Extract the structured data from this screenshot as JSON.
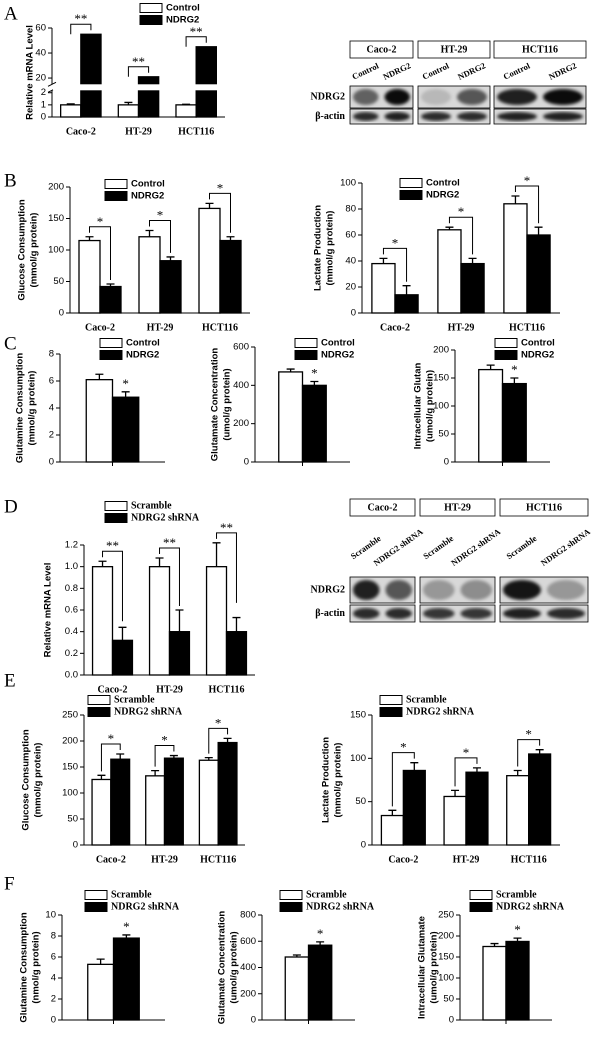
{
  "panel_letters": [
    "A",
    "B",
    "C",
    "D",
    "E",
    "F"
  ],
  "chart_data": [
    {
      "type": "bar",
      "ylabel": [
        "Relative mRNA Level"
      ],
      "categories": [
        "Caco-2",
        "HT-29",
        "HCT116"
      ],
      "series": [
        {
          "name": "Control",
          "color": "#ffffff",
          "values": [
            1,
            1,
            1
          ],
          "errors": [
            0.08,
            0.2,
            0.05
          ]
        },
        {
          "name": "NDRG2",
          "color": "#000000",
          "values": [
            55,
            21,
            45
          ]
        }
      ],
      "ylim": [
        0,
        60
      ],
      "yticks": [
        0,
        1,
        2,
        20,
        40,
        60
      ],
      "ybreak": [
        2.2,
        15
      ],
      "significance": [
        "**",
        "**",
        "**"
      ]
    },
    {
      "type": "bar",
      "ylabel": [
        "Glucose Consumption",
        "(mmol/g protein)"
      ],
      "categories": [
        "Caco-2",
        "HT-29",
        "HCT116"
      ],
      "series": [
        {
          "name": "Control",
          "color": "#ffffff",
          "values": [
            115,
            121,
            166
          ],
          "errors": [
            6,
            10,
            8
          ]
        },
        {
          "name": "NDRG2",
          "color": "#000000",
          "values": [
            42,
            83,
            115
          ],
          "errors": [
            4,
            6,
            6
          ]
        }
      ],
      "ylim": [
        0,
        200
      ],
      "yticks": [
        0,
        50,
        100,
        150,
        200
      ],
      "significance": [
        "*",
        "*",
        "*"
      ]
    },
    {
      "type": "bar",
      "ylabel": [
        "Lactate Production",
        "(mmol/g protein)"
      ],
      "categories": [
        "Caco-2",
        "HT-29",
        "HCT116"
      ],
      "series": [
        {
          "name": "Control",
          "color": "#ffffff",
          "values": [
            38,
            64,
            84
          ],
          "errors": [
            4,
            2,
            6
          ]
        },
        {
          "name": "NDRG2",
          "color": "#000000",
          "values": [
            14,
            38,
            60
          ],
          "errors": [
            7,
            4,
            6
          ]
        }
      ],
      "ylim": [
        0,
        100
      ],
      "yticks": [
        0,
        20,
        40,
        60,
        80,
        100
      ],
      "significance": [
        "*",
        "*",
        "*"
      ]
    },
    {
      "type": "bar",
      "ylabel": [
        "Glutamine Consumption",
        "(mmol/g protein)"
      ],
      "series": [
        {
          "name": "Control",
          "color": "#ffffff",
          "values": [
            6.1
          ],
          "errors": [
            0.4
          ]
        },
        {
          "name": "NDRG2",
          "color": "#000000",
          "values": [
            4.8
          ],
          "errors": [
            0.4
          ]
        }
      ],
      "ylim": [
        0,
        8
      ],
      "yticks": [
        0,
        2,
        4,
        6,
        8
      ],
      "significance": [
        "*"
      ]
    },
    {
      "type": "bar",
      "ylabel": [
        "Glutamate Concentration",
        "(umol/g protein)"
      ],
      "series": [
        {
          "name": "Control",
          "color": "#ffffff",
          "values": [
            470
          ],
          "errors": [
            15
          ]
        },
        {
          "name": "NDRG2",
          "color": "#000000",
          "values": [
            400
          ],
          "errors": [
            20
          ]
        }
      ],
      "ylim": [
        0,
        600
      ],
      "yticks": [
        0,
        200,
        400,
        600
      ],
      "significance": [
        "*"
      ]
    },
    {
      "type": "bar",
      "ylabel": [
        "Intracellular Glutan",
        "(umol/g protein)"
      ],
      "series": [
        {
          "name": "Control",
          "color": "#ffffff",
          "values": [
            165
          ],
          "errors": [
            8
          ]
        },
        {
          "name": "NDRG2",
          "color": "#000000",
          "values": [
            140
          ],
          "errors": [
            10
          ]
        }
      ],
      "ylim": [
        0,
        200
      ],
      "yticks": [
        0,
        50,
        100,
        150,
        200
      ],
      "significance": [
        "*"
      ]
    },
    {
      "type": "bar",
      "ylabel": [
        "Relative mRNA Level"
      ],
      "categories": [
        "Caco-2",
        "HT-29",
        "HCT116"
      ],
      "series": [
        {
          "name": "Scramble",
          "color": "#ffffff",
          "values": [
            1,
            1,
            1
          ],
          "errors": [
            0.05,
            0.08,
            0.22
          ]
        },
        {
          "name": "NDRG2 shRNA",
          "color": "#000000",
          "values": [
            0.32,
            0.4,
            0.4
          ],
          "errors": [
            0.12,
            0.2,
            0.13
          ]
        }
      ],
      "ylim": [
        0,
        1.2
      ],
      "yticks": [
        {
          "value": 0,
          "label": "0.0"
        },
        0.2,
        0.4,
        0.6,
        0.8,
        {
          "value": 1,
          "label": "1.0"
        },
        1.2
      ],
      "significance": [
        "**",
        "**",
        "**"
      ]
    },
    {
      "type": "bar",
      "ylabel": [
        "Glucose Consumption",
        "(mmol/g protein)"
      ],
      "categories": [
        "Caco-2",
        "HT-29",
        "HCT116"
      ],
      "series": [
        {
          "name": "Scramble",
          "color": "#ffffff",
          "values": [
            126,
            133,
            163
          ],
          "errors": [
            8,
            10,
            5
          ]
        },
        {
          "name": "NDRG2 shRNA",
          "color": "#000000",
          "values": [
            165,
            167,
            197
          ],
          "errors": [
            10,
            5,
            8
          ]
        }
      ],
      "ylim": [
        0,
        250
      ],
      "yticks": [
        0,
        50,
        100,
        150,
        200,
        250
      ],
      "significance": [
        "*",
        "*",
        "*"
      ]
    },
    {
      "type": "bar",
      "ylabel": [
        "Lactate Production",
        "(mmol/g protein)"
      ],
      "categories": [
        "Caco-2",
        "HT-29",
        "HCT116"
      ],
      "series": [
        {
          "name": "Scramble",
          "color": "#ffffff",
          "values": [
            34,
            56,
            80
          ],
          "errors": [
            6,
            7,
            6
          ]
        },
        {
          "name": "NDRG2 shRNA",
          "color": "#000000",
          "values": [
            86,
            84,
            105
          ],
          "errors": [
            9,
            5,
            5
          ]
        }
      ],
      "ylim": [
        0,
        150
      ],
      "yticks": [
        0,
        50,
        100,
        150
      ],
      "significance": [
        "*",
        "*",
        "*"
      ]
    },
    {
      "type": "bar",
      "ylabel": [
        "Glutamine Consumption",
        "(nmol/g protein)"
      ],
      "series": [
        {
          "name": "Scramble",
          "color": "#ffffff",
          "values": [
            5.3
          ],
          "errors": [
            0.5
          ]
        },
        {
          "name": "NDRG2 shRNA",
          "color": "#000000",
          "values": [
            7.8
          ],
          "errors": [
            0.3
          ]
        }
      ],
      "ylim": [
        0,
        10
      ],
      "yticks": [
        0,
        2,
        4,
        6,
        8,
        10
      ],
      "significance": [
        "*"
      ]
    },
    {
      "type": "bar",
      "ylabel": [
        "Glutamate Concentration",
        "(umol/g protein)"
      ],
      "series": [
        {
          "name": "Scramble",
          "color": "#ffffff",
          "values": [
            480
          ],
          "errors": [
            15
          ]
        },
        {
          "name": "NDRG2 shRNA",
          "color": "#000000",
          "values": [
            570
          ],
          "errors": [
            25
          ]
        }
      ],
      "ylim": [
        0,
        800
      ],
      "yticks": [
        0,
        200,
        400,
        600,
        800
      ],
      "significance": [
        "*"
      ]
    },
    {
      "type": "bar",
      "ylabel": [
        "Intracellular Glutamate",
        "(umol/g protein)"
      ],
      "series": [
        {
          "name": "Scramble",
          "color": "#ffffff",
          "values": [
            175
          ],
          "errors": [
            7
          ]
        },
        {
          "name": "NDRG2 shRNA",
          "color": "#000000",
          "values": [
            187
          ],
          "errors": [
            8
          ]
        }
      ],
      "ylim": [
        0,
        250
      ],
      "yticks": [
        0,
        50,
        100,
        150,
        200,
        250
      ],
      "significance": [
        "*"
      ]
    }
  ],
  "blots": [
    {
      "rows": [
        "NDRG2",
        "β-actin"
      ],
      "groups": [
        {
          "name": "Caco-2",
          "lanes": [
            "Control",
            "NDRG2"
          ]
        },
        {
          "name": "HT-29",
          "lanes": [
            "Control",
            "NDRG2"
          ]
        },
        {
          "name": "HCT116",
          "lanes": [
            "Control",
            "NDRG2"
          ]
        }
      ]
    },
    {
      "rows": [
        "NDRG2",
        "β-actin"
      ],
      "groups": [
        {
          "name": "Caco-2",
          "lanes": [
            "Scramble",
            "NDRG2 shRNA"
          ]
        },
        {
          "name": "HT-29",
          "lanes": [
            "Scramble",
            "NDRG2 shRNA"
          ]
        },
        {
          "name": "HCT116",
          "lanes": [
            "Scramble",
            "NDRG2 shRNA"
          ]
        }
      ]
    }
  ]
}
